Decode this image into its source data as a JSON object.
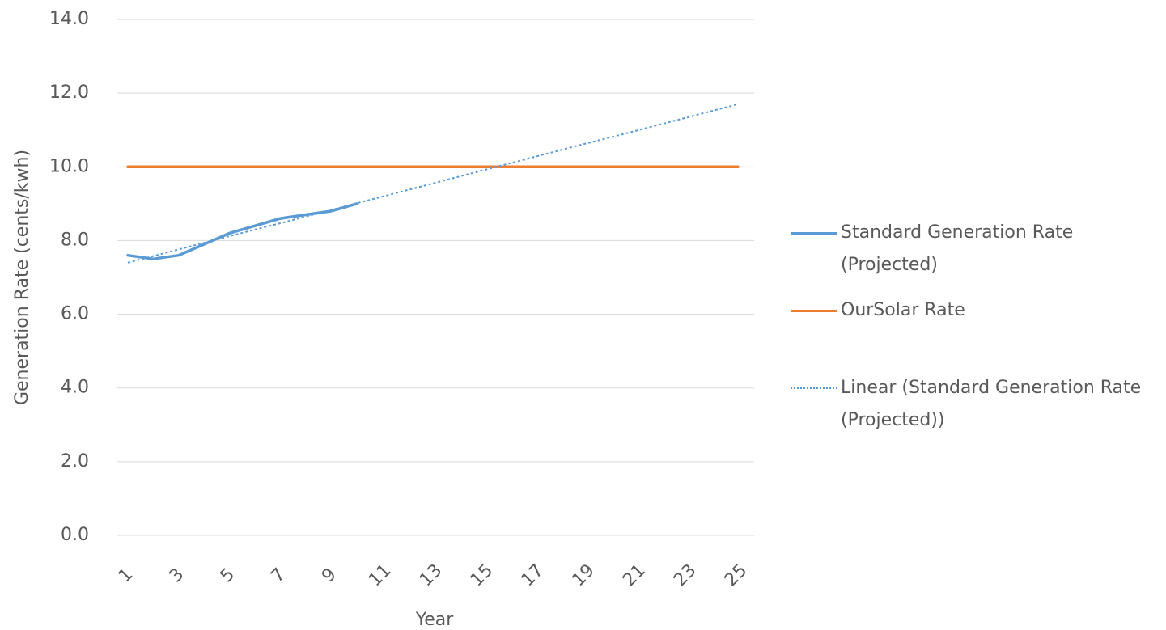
{
  "chart_data": {
    "type": "line",
    "x_label": "Year",
    "y_label": "Generation Rate (cents/kwh)",
    "categories": [
      "1",
      null,
      "3",
      null,
      "5",
      null,
      "7",
      null,
      "9",
      null,
      "11",
      null,
      "13",
      null,
      "15",
      null,
      "17",
      null,
      "19",
      null,
      "21",
      null,
      "23",
      null,
      "25"
    ],
    "ylim": [
      0,
      14
    ],
    "yticks": [
      {
        "value": 0,
        "label": "0.0"
      },
      {
        "value": 2,
        "label": "2.0"
      },
      {
        "value": 4,
        "label": "4.0"
      },
      {
        "value": 6,
        "label": "6.0"
      },
      {
        "value": 8,
        "label": "8.0"
      },
      {
        "value": 10,
        "label": "10.0"
      },
      {
        "value": 12,
        "label": "12.0"
      },
      {
        "value": 14,
        "label": "14.0"
      }
    ],
    "grid": true,
    "legend": "right",
    "series": [
      {
        "name": "Standard Generation Rate (Projected)",
        "color": "#5b9bd5",
        "dash": "solid",
        "values": [
          7.6,
          7.5,
          7.6,
          7.9,
          8.2,
          8.4,
          8.6,
          8.7,
          8.8,
          9.0,
          null,
          null,
          null,
          null,
          null,
          null,
          null,
          null,
          null,
          null,
          null,
          null,
          null,
          null,
          null
        ]
      },
      {
        "name": "OurSolar Rate",
        "color": "#ed7d31",
        "dash": "solid",
        "values": [
          10,
          10,
          10,
          10,
          10,
          10,
          10,
          10,
          10,
          10,
          10,
          10,
          10,
          10,
          10,
          10,
          10,
          10,
          10,
          10,
          10,
          10,
          10,
          10,
          10
        ]
      },
      {
        "name": "Linear (Standard Generation Rate (Projected))",
        "color": "#5b9bd5",
        "dash": "dotted",
        "values": [
          7.4,
          7.58,
          7.76,
          7.94,
          8.12,
          8.3,
          8.47,
          8.65,
          8.83,
          9.01,
          9.19,
          9.37,
          9.55,
          9.73,
          9.91,
          10.09,
          10.27,
          10.45,
          10.63,
          10.8,
          10.98,
          11.16,
          11.34,
          11.52,
          11.7
        ]
      }
    ]
  }
}
